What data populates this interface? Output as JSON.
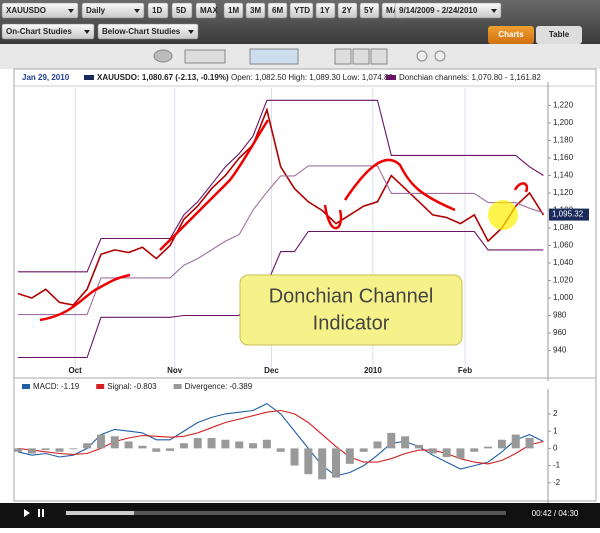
{
  "toolbar": {
    "symbol": "XAUUSDO",
    "interval": "Daily",
    "ranges_a": [
      "1D",
      "5D",
      "MAX"
    ],
    "ranges_b": [
      "1M",
      "3M",
      "6M",
      "YTD",
      "1Y",
      "2Y",
      "5Y",
      "MAX"
    ],
    "date_range": "9/14/2009 - 2/24/2010",
    "studies": [
      "On-Chart Studies",
      "Below-Chart Studies"
    ],
    "tabs": [
      "Charts",
      "Table"
    ]
  },
  "info": {
    "date": "Jan 29, 2010",
    "quote": "XAUUSDO: 1,080.67 (-2.13, -0.19%)",
    "ohl": "Open: 1,082.50 High: 1,089.30 Low: 1,074.80",
    "donchian": "Donchian channels: 1,070.80 - 1,161.82"
  },
  "chart_data": [
    {
      "type": "line",
      "annotation": [
        "Donchian Channel",
        "Indicator"
      ],
      "x": [
        0,
        3,
        6,
        9,
        12,
        15,
        18,
        21,
        24,
        27,
        30,
        33,
        36,
        39,
        42,
        45,
        48,
        51,
        54,
        57,
        60,
        63,
        66,
        69,
        72,
        75,
        78,
        81,
        84,
        87,
        90,
        93,
        96,
        99,
        102,
        105,
        108,
        111,
        114
      ],
      "series": [
        {
          "color": "#b00000",
          "values": [
            1005,
            1000,
            1010,
            995,
            992,
            1010,
            1050,
            1055,
            1052,
            1058,
            1045,
            1060,
            1090,
            1105,
            1125,
            1140,
            1160,
            1175,
            1215,
            1150,
            1125,
            1110,
            1100,
            1085,
            1095,
            1105,
            1110,
            1140,
            1125,
            1110,
            1095,
            1092,
            1085,
            1095,
            1065,
            1080,
            1105,
            1120,
            1095
          ]
        },
        {
          "color": "#6a1466",
          "values": [
            1030,
            1030,
            1030,
            1030,
            1030,
            1030,
            1068,
            1068,
            1068,
            1068,
            1068,
            1068,
            1095,
            1110,
            1130,
            1150,
            1165,
            1185,
            1226,
            1226,
            1226,
            1226,
            1226,
            1226,
            1226,
            1226,
            1226,
            1163,
            1163,
            1163,
            1163,
            1163,
            1163,
            1163,
            1163,
            1163,
            1163,
            1150,
            1140
          ]
        },
        {
          "color": "#a070a0",
          "values": [
            981,
            981,
            981,
            981,
            981,
            981,
            1023,
            1023,
            1023,
            1023,
            1023,
            1023,
            1037.5,
            1045,
            1055,
            1065,
            1072.5,
            1100.5,
            1121,
            1139.5,
            1139.5,
            1151,
            1151,
            1151,
            1151,
            1151,
            1151,
            1119.5,
            1119.5,
            1119.5,
            1119.5,
            1119.5,
            1119.5,
            1119.5,
            1109,
            1109,
            1109,
            1102.5,
            1097.5
          ]
        },
        {
          "color": "#6a1466",
          "values": [
            932,
            932,
            932,
            932,
            932,
            932,
            978,
            978,
            978,
            978,
            978,
            978,
            980,
            980,
            980,
            980,
            980,
            1016,
            1016,
            1053,
            1053,
            1076,
            1076,
            1076,
            1076,
            1076,
            1076,
            1076,
            1076,
            1076,
            1076,
            1076,
            1076,
            1076,
            1055,
            1055,
            1055,
            1055,
            1055
          ]
        }
      ],
      "xlim": [
        0,
        115
      ],
      "xticks": [
        {
          "value": 12.4,
          "label": "Oct"
        },
        {
          "value": 34,
          "label": "Nov"
        },
        {
          "value": 55,
          "label": "Dec"
        },
        {
          "value": 77,
          "label": "2010"
        },
        {
          "value": 97,
          "label": "Feb"
        }
      ],
      "ylim": [
        912,
        1240
      ],
      "yticks": [
        940,
        960,
        980,
        {
          "value": 1000,
          "label": "1,000"
        },
        {
          "value": 1020,
          "label": "1,020"
        },
        {
          "value": 1040,
          "label": "1,040"
        },
        {
          "value": 1060,
          "label": "1,060"
        },
        {
          "value": 1080,
          "label": "1,080"
        },
        {
          "value": 1100,
          "label": "1,100"
        },
        {
          "value": 1120,
          "label": "1,120"
        },
        {
          "value": 1140,
          "label": "1,140"
        },
        {
          "value": 1160,
          "label": "1,160"
        },
        {
          "value": 1180,
          "label": "1,180"
        },
        {
          "value": 1200,
          "label": "1,200"
        },
        {
          "value": 1220,
          "label": "1,220"
        }
      ],
      "last_price": {
        "value": 1095.32,
        "label": "1,095.32"
      }
    },
    {
      "type": "line",
      "x": [
        0,
        3,
        6,
        9,
        12,
        15,
        18,
        21,
        24,
        27,
        30,
        33,
        36,
        39,
        42,
        45,
        48,
        51,
        54,
        57,
        60,
        63,
        66,
        69,
        72,
        75,
        78,
        81,
        84,
        87,
        90,
        93,
        96,
        99,
        102,
        105,
        108,
        111,
        114
      ],
      "series": [
        {
          "name": "MACD: -1.19",
          "color": "#1f5fa8",
          "values": [
            -0.2,
            -0.4,
            -0.3,
            -0.5,
            -0.4,
            0,
            0.8,
            1.1,
            1,
            0.9,
            0.5,
            0.5,
            1,
            1.5,
            1.8,
            2,
            2.1,
            2.2,
            2.6,
            2,
            1,
            0,
            -1,
            -1.6,
            -1.4,
            -1,
            -0.4,
            0.3,
            0.4,
            0.1,
            -0.4,
            -0.8,
            -1.2,
            -1,
            -0.8,
            -0.2,
            0.5,
            0.8,
            0.4
          ]
        },
        {
          "name": "Signal: -0.803",
          "color": "#d42020",
          "values": [
            0,
            -0.1,
            -0.2,
            -0.3,
            -0.35,
            -0.3,
            0,
            0.4,
            0.6,
            0.75,
            0.7,
            0.65,
            0.7,
            0.9,
            1.2,
            1.5,
            1.7,
            1.9,
            2.1,
            2.2,
            2,
            1.5,
            0.8,
            0.1,
            -0.5,
            -0.8,
            -0.8,
            -0.6,
            -0.3,
            -0.1,
            -0.1,
            -0.3,
            -0.6,
            -0.8,
            -0.9,
            -0.7,
            -0.3,
            0.2,
            0.4
          ]
        },
        {
          "name": "Divergence: -0.389",
          "type": "bar",
          "color": "#999999",
          "values": [
            -0.2,
            -0.3,
            -0.1,
            -0.2,
            -0.05,
            0.3,
            0.8,
            0.7,
            0.4,
            0.15,
            -0.2,
            -0.15,
            0.3,
            0.6,
            0.6,
            0.5,
            0.4,
            0.3,
            0.5,
            -0.2,
            -1,
            -1.5,
            -1.8,
            -1.7,
            -0.9,
            -0.2,
            0.4,
            0.9,
            0.7,
            0.2,
            -0.3,
            -0.5,
            -0.6,
            -0.2,
            0.1,
            0.5,
            0.8,
            0.6,
            0
          ]
        }
      ],
      "xlim": [
        0,
        115
      ],
      "ylim": [
        -3,
        3.1
      ],
      "yticks": [
        2,
        1,
        0,
        -1,
        -2
      ]
    }
  ],
  "player": {
    "time": "00:42 / 04:30"
  }
}
